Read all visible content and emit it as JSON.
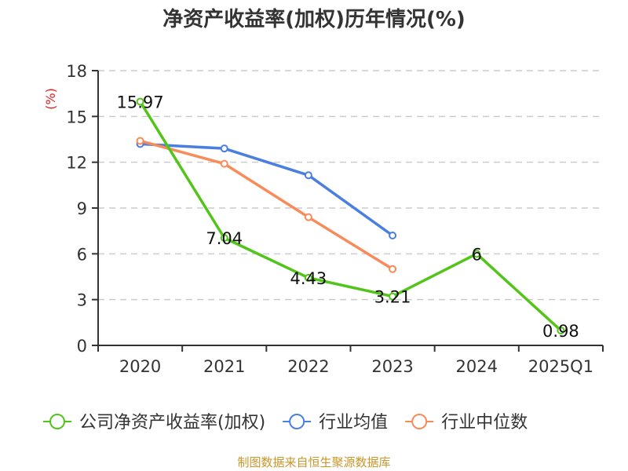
{
  "chart_data": {
    "type": "line",
    "title": "净资产收益率(加权)历年情况(%)",
    "xlabel": "",
    "ylabel": "(%)",
    "categories": [
      "2020",
      "2021",
      "2022",
      "2023",
      "2024",
      "2025Q1"
    ],
    "ylim": [
      0,
      18
    ],
    "yticks": [
      0,
      3,
      6,
      9,
      12,
      15,
      18
    ],
    "grid": true,
    "legend_position": "bottom",
    "series": [
      {
        "name": "公司净资产收益率(加权)",
        "color": "#52c41a",
        "values": [
          15.97,
          7.04,
          4.43,
          3.21,
          6,
          0.98
        ],
        "labels": [
          "15.97",
          "7.04",
          "4.43",
          "3.21",
          "6",
          "0.98"
        ]
      },
      {
        "name": "行业均值",
        "color": "#4a7fdf",
        "values": [
          13.2,
          12.9,
          11.15,
          7.2,
          null,
          null
        ]
      },
      {
        "name": "行业中位数",
        "color": "#f88b5a",
        "values": [
          13.4,
          11.9,
          8.4,
          5.0,
          null,
          null
        ]
      }
    ]
  },
  "source_note": "制图数据来自恒生聚源数据库"
}
